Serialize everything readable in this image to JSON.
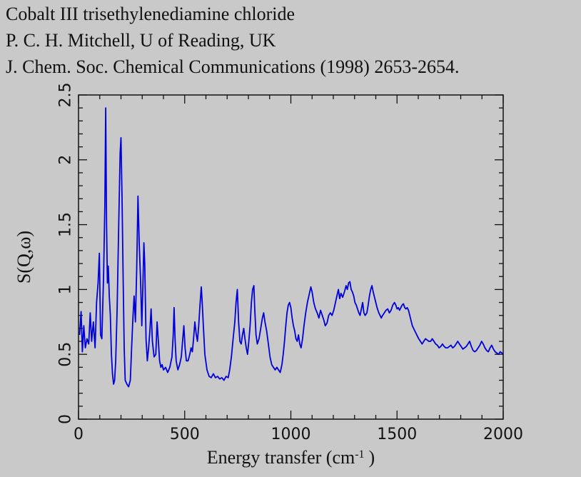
{
  "header": {
    "line1": "Cobalt III trisethylenediamine chloride",
    "line2": "P. C. H. Mitchell, U of Reading, UK",
    "line3": "J. Chem. Soc. Chemical Communications (1998) 2653-2654."
  },
  "chart_data": {
    "type": "line",
    "title": "Cobalt III trisethylenediamine chloride",
    "xlabel": "Energy transfer (cm-1)",
    "xlabel_main": "Energy transfer (cm",
    "xlabel_sup": "-1",
    "xlabel_end": ")",
    "ylabel": "S(Q,ω)",
    "xlim": [
      0,
      2000
    ],
    "ylim": [
      0,
      2.5
    ],
    "xticks": [
      0,
      500,
      1000,
      1500,
      2000
    ],
    "xtick_labels": [
      "0",
      "500",
      "1000",
      "1500",
      "2000"
    ],
    "yticks": [
      0,
      0.5,
      1,
      1.5,
      2,
      2.5
    ],
    "ytick_labels": [
      "0",
      "0.5",
      "1",
      "1.5",
      "2",
      "2.5"
    ],
    "grid": false,
    "line_color": "#0000dd",
    "series": [
      {
        "name": "S(Q,ω)",
        "points": [
          [
            5,
            0.65
          ],
          [
            12,
            0.83
          ],
          [
            18,
            0.52
          ],
          [
            25,
            0.72
          ],
          [
            32,
            0.55
          ],
          [
            40,
            0.62
          ],
          [
            48,
            0.58
          ],
          [
            55,
            0.82
          ],
          [
            62,
            0.6
          ],
          [
            70,
            0.75
          ],
          [
            78,
            0.55
          ],
          [
            85,
            0.9
          ],
          [
            92,
            1.05
          ],
          [
            98,
            1.28
          ],
          [
            104,
            0.65
          ],
          [
            110,
            0.62
          ],
          [
            118,
            1.1
          ],
          [
            124,
            1.65
          ],
          [
            128,
            2.4
          ],
          [
            132,
            1.5
          ],
          [
            136,
            1.05
          ],
          [
            140,
            1.18
          ],
          [
            145,
            0.95
          ],
          [
            150,
            0.8
          ],
          [
            155,
            0.5
          ],
          [
            160,
            0.35
          ],
          [
            165,
            0.27
          ],
          [
            170,
            0.3
          ],
          [
            175,
            0.45
          ],
          [
            182,
            0.85
          ],
          [
            190,
            1.55
          ],
          [
            196,
            2.05
          ],
          [
            200,
            2.17
          ],
          [
            205,
            1.7
          ],
          [
            210,
            1.1
          ],
          [
            215,
            0.55
          ],
          [
            220,
            0.3
          ],
          [
            228,
            0.27
          ],
          [
            236,
            0.25
          ],
          [
            244,
            0.3
          ],
          [
            250,
            0.55
          ],
          [
            256,
            0.78
          ],
          [
            262,
            0.95
          ],
          [
            268,
            0.75
          ],
          [
            274,
            1.15
          ],
          [
            280,
            1.72
          ],
          [
            286,
            1.35
          ],
          [
            292,
            1.08
          ],
          [
            298,
            0.72
          ],
          [
            304,
            1.08
          ],
          [
            308,
            1.36
          ],
          [
            312,
            1.2
          ],
          [
            318,
            0.62
          ],
          [
            324,
            0.45
          ],
          [
            330,
            0.55
          ],
          [
            336,
            0.68
          ],
          [
            342,
            0.85
          ],
          [
            348,
            0.6
          ],
          [
            356,
            0.48
          ],
          [
            364,
            0.5
          ],
          [
            370,
            0.75
          ],
          [
            376,
            0.6
          ],
          [
            382,
            0.45
          ],
          [
            388,
            0.4
          ],
          [
            394,
            0.42
          ],
          [
            400,
            0.38
          ],
          [
            410,
            0.4
          ],
          [
            420,
            0.36
          ],
          [
            430,
            0.4
          ],
          [
            440,
            0.48
          ],
          [
            446,
            0.65
          ],
          [
            450,
            0.86
          ],
          [
            455,
            0.6
          ],
          [
            460,
            0.45
          ],
          [
            468,
            0.38
          ],
          [
            476,
            0.42
          ],
          [
            484,
            0.48
          ],
          [
            490,
            0.6
          ],
          [
            496,
            0.72
          ],
          [
            502,
            0.55
          ],
          [
            508,
            0.45
          ],
          [
            516,
            0.45
          ],
          [
            524,
            0.5
          ],
          [
            530,
            0.55
          ],
          [
            536,
            0.52
          ],
          [
            542,
            0.62
          ],
          [
            548,
            0.75
          ],
          [
            554,
            0.66
          ],
          [
            560,
            0.6
          ],
          [
            566,
            0.72
          ],
          [
            572,
            0.88
          ],
          [
            578,
            1.02
          ],
          [
            582,
            0.92
          ],
          [
            588,
            0.72
          ],
          [
            595,
            0.5
          ],
          [
            605,
            0.38
          ],
          [
            615,
            0.33
          ],
          [
            625,
            0.32
          ],
          [
            635,
            0.35
          ],
          [
            645,
            0.32
          ],
          [
            655,
            0.33
          ],
          [
            665,
            0.31
          ],
          [
            675,
            0.32
          ],
          [
            685,
            0.3
          ],
          [
            695,
            0.33
          ],
          [
            705,
            0.32
          ],
          [
            712,
            0.38
          ],
          [
            720,
            0.48
          ],
          [
            728,
            0.62
          ],
          [
            736,
            0.75
          ],
          [
            742,
            0.9
          ],
          [
            748,
            1.0
          ],
          [
            754,
            0.75
          ],
          [
            760,
            0.6
          ],
          [
            766,
            0.58
          ],
          [
            772,
            0.65
          ],
          [
            778,
            0.7
          ],
          [
            784,
            0.62
          ],
          [
            790,
            0.55
          ],
          [
            796,
            0.5
          ],
          [
            802,
            0.6
          ],
          [
            808,
            0.72
          ],
          [
            814,
            0.9
          ],
          [
            820,
            1.0
          ],
          [
            826,
            1.03
          ],
          [
            830,
            0.85
          ],
          [
            836,
            0.65
          ],
          [
            842,
            0.58
          ],
          [
            850,
            0.62
          ],
          [
            858,
            0.7
          ],
          [
            866,
            0.78
          ],
          [
            872,
            0.82
          ],
          [
            878,
            0.75
          ],
          [
            886,
            0.68
          ],
          [
            894,
            0.58
          ],
          [
            902,
            0.48
          ],
          [
            910,
            0.42
          ],
          [
            918,
            0.4
          ],
          [
            926,
            0.38
          ],
          [
            934,
            0.4
          ],
          [
            942,
            0.38
          ],
          [
            950,
            0.36
          ],
          [
            958,
            0.42
          ],
          [
            964,
            0.5
          ],
          [
            970,
            0.6
          ],
          [
            976,
            0.72
          ],
          [
            982,
            0.82
          ],
          [
            988,
            0.88
          ],
          [
            994,
            0.9
          ],
          [
            1000,
            0.86
          ],
          [
            1006,
            0.78
          ],
          [
            1012,
            0.72
          ],
          [
            1018,
            0.68
          ],
          [
            1024,
            0.62
          ],
          [
            1030,
            0.6
          ],
          [
            1036,
            0.65
          ],
          [
            1042,
            0.58
          ],
          [
            1048,
            0.55
          ],
          [
            1055,
            0.62
          ],
          [
            1062,
            0.72
          ],
          [
            1070,
            0.82
          ],
          [
            1078,
            0.9
          ],
          [
            1086,
            0.96
          ],
          [
            1094,
            1.02
          ],
          [
            1100,
            0.98
          ],
          [
            1108,
            0.9
          ],
          [
            1116,
            0.85
          ],
          [
            1124,
            0.82
          ],
          [
            1132,
            0.78
          ],
          [
            1140,
            0.84
          ],
          [
            1148,
            0.8
          ],
          [
            1156,
            0.76
          ],
          [
            1162,
            0.72
          ],
          [
            1170,
            0.74
          ],
          [
            1178,
            0.8
          ],
          [
            1186,
            0.82
          ],
          [
            1194,
            0.8
          ],
          [
            1202,
            0.84
          ],
          [
            1210,
            0.9
          ],
          [
            1218,
            0.96
          ],
          [
            1224,
            1.0
          ],
          [
            1230,
            0.93
          ],
          [
            1236,
            0.97
          ],
          [
            1244,
            0.94
          ],
          [
            1252,
            0.98
          ],
          [
            1260,
            1.03
          ],
          [
            1266,
            1.0
          ],
          [
            1272,
            1.05
          ],
          [
            1278,
            1.06
          ],
          [
            1284,
            1.0
          ],
          [
            1290,
            0.98
          ],
          [
            1296,
            0.95
          ],
          [
            1302,
            0.9
          ],
          [
            1308,
            0.88
          ],
          [
            1314,
            0.85
          ],
          [
            1320,
            0.82
          ],
          [
            1326,
            0.8
          ],
          [
            1332,
            0.85
          ],
          [
            1338,
            0.9
          ],
          [
            1344,
            0.82
          ],
          [
            1350,
            0.8
          ],
          [
            1358,
            0.82
          ],
          [
            1364,
            0.88
          ],
          [
            1370,
            0.95
          ],
          [
            1376,
            1.0
          ],
          [
            1382,
            1.03
          ],
          [
            1388,
            0.98
          ],
          [
            1394,
            0.94
          ],
          [
            1400,
            0.9
          ],
          [
            1406,
            0.86
          ],
          [
            1414,
            0.82
          ],
          [
            1420,
            0.8
          ],
          [
            1426,
            0.78
          ],
          [
            1432,
            0.8
          ],
          [
            1440,
            0.82
          ],
          [
            1448,
            0.84
          ],
          [
            1456,
            0.85
          ],
          [
            1464,
            0.82
          ],
          [
            1472,
            0.84
          ],
          [
            1480,
            0.88
          ],
          [
            1488,
            0.9
          ],
          [
            1494,
            0.88
          ],
          [
            1500,
            0.85
          ],
          [
            1506,
            0.86
          ],
          [
            1512,
            0.84
          ],
          [
            1518,
            0.86
          ],
          [
            1524,
            0.88
          ],
          [
            1530,
            0.89
          ],
          [
            1536,
            0.86
          ],
          [
            1542,
            0.85
          ],
          [
            1548,
            0.86
          ],
          [
            1554,
            0.84
          ],
          [
            1560,
            0.8
          ],
          [
            1566,
            0.76
          ],
          [
            1572,
            0.72
          ],
          [
            1578,
            0.7
          ],
          [
            1584,
            0.68
          ],
          [
            1590,
            0.66
          ],
          [
            1596,
            0.64
          ],
          [
            1602,
            0.62
          ],
          [
            1610,
            0.6
          ],
          [
            1618,
            0.58
          ],
          [
            1626,
            0.6
          ],
          [
            1634,
            0.62
          ],
          [
            1642,
            0.61
          ],
          [
            1650,
            0.6
          ],
          [
            1658,
            0.6
          ],
          [
            1666,
            0.62
          ],
          [
            1674,
            0.6
          ],
          [
            1682,
            0.58
          ],
          [
            1690,
            0.57
          ],
          [
            1698,
            0.55
          ],
          [
            1706,
            0.56
          ],
          [
            1714,
            0.58
          ],
          [
            1722,
            0.56
          ],
          [
            1730,
            0.55
          ],
          [
            1738,
            0.55
          ],
          [
            1746,
            0.56
          ],
          [
            1754,
            0.57
          ],
          [
            1762,
            0.55
          ],
          [
            1770,
            0.56
          ],
          [
            1778,
            0.58
          ],
          [
            1786,
            0.6
          ],
          [
            1794,
            0.58
          ],
          [
            1802,
            0.56
          ],
          [
            1810,
            0.54
          ],
          [
            1818,
            0.55
          ],
          [
            1826,
            0.56
          ],
          [
            1834,
            0.58
          ],
          [
            1842,
            0.6
          ],
          [
            1850,
            0.56
          ],
          [
            1858,
            0.53
          ],
          [
            1866,
            0.52
          ],
          [
            1874,
            0.53
          ],
          [
            1882,
            0.55
          ],
          [
            1890,
            0.57
          ],
          [
            1898,
            0.6
          ],
          [
            1906,
            0.58
          ],
          [
            1914,
            0.55
          ],
          [
            1922,
            0.53
          ],
          [
            1930,
            0.52
          ],
          [
            1938,
            0.55
          ],
          [
            1946,
            0.57
          ],
          [
            1954,
            0.54
          ],
          [
            1962,
            0.52
          ],
          [
            1970,
            0.51
          ],
          [
            1978,
            0.5
          ],
          [
            1986,
            0.52
          ],
          [
            1994,
            0.51
          ],
          [
            2000,
            0.5
          ]
        ]
      }
    ]
  }
}
